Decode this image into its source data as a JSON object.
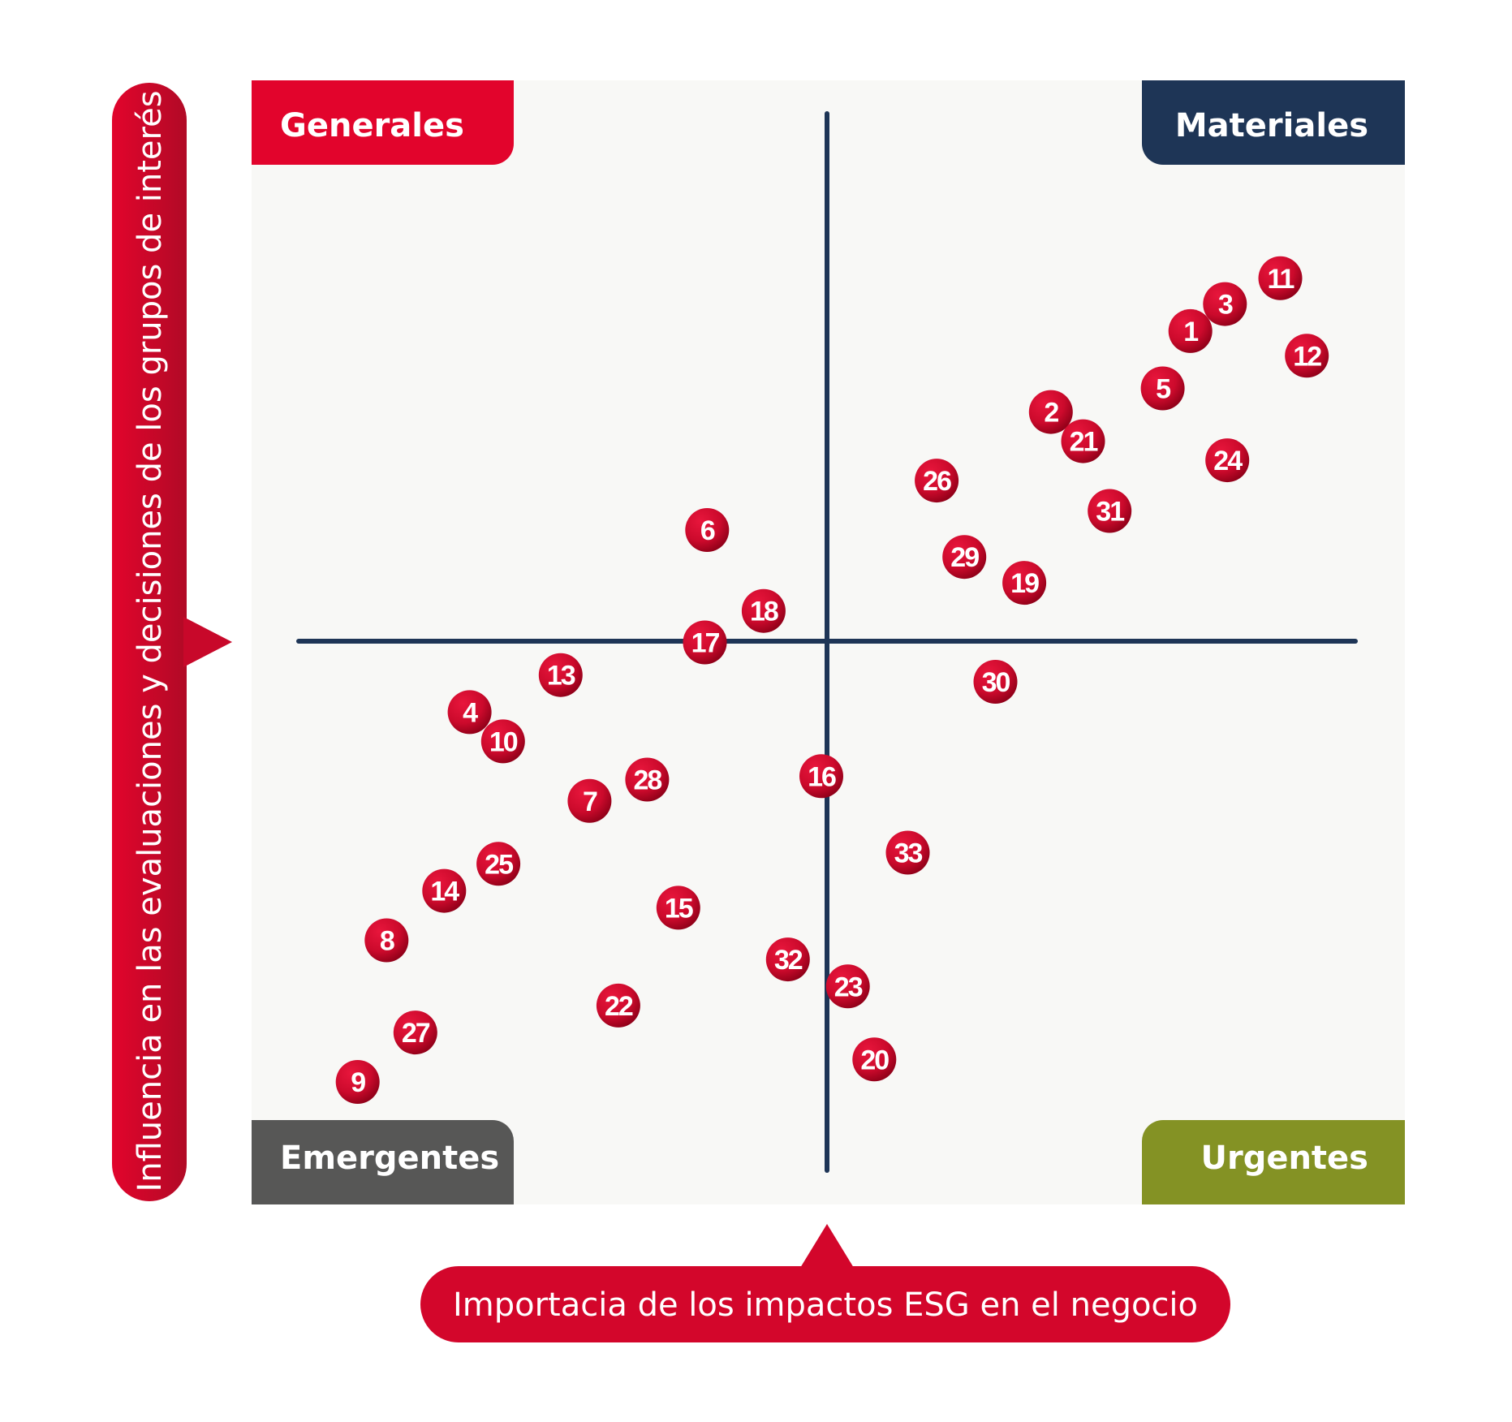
{
  "chart_data": {
    "type": "scatter",
    "xlabel": "Importacia de los impactos ESG en el negocio",
    "ylabel": "Influencia en las evaluaciones y decisiones de los grupos de interés",
    "xlim": [
      0,
      100
    ],
    "ylim": [
      0,
      100
    ],
    "grid": false,
    "quadrants": {
      "top_left": "Generales",
      "top_right": "Materiales",
      "bottom_left": "Emergentes",
      "bottom_right": "Urgentes"
    },
    "points": [
      {
        "label": "1",
        "x": 81.4,
        "y": 77.7
      },
      {
        "label": "2",
        "x": 69.3,
        "y": 70.5
      },
      {
        "label": "3",
        "x": 84.4,
        "y": 80.1
      },
      {
        "label": "4",
        "x": 18.9,
        "y": 43.8
      },
      {
        "label": "5",
        "x": 79.0,
        "y": 72.6
      },
      {
        "label": "6",
        "x": 39.5,
        "y": 60.0
      },
      {
        "label": "7",
        "x": 29.3,
        "y": 35.9
      },
      {
        "label": "8",
        "x": 11.7,
        "y": 23.5
      },
      {
        "label": "9",
        "x": 9.2,
        "y": 10.9
      },
      {
        "label": "10",
        "x": 21.8,
        "y": 41.2
      },
      {
        "label": "11",
        "x": 89.2,
        "y": 82.4
      },
      {
        "label": "12",
        "x": 91.5,
        "y": 75.5
      },
      {
        "label": "13",
        "x": 26.8,
        "y": 47.1
      },
      {
        "label": "14",
        "x": 16.7,
        "y": 27.9
      },
      {
        "label": "15",
        "x": 37.0,
        "y": 26.4
      },
      {
        "label": "16",
        "x": 49.4,
        "y": 38.1
      },
      {
        "label": "17",
        "x": 39.3,
        "y": 50.0
      },
      {
        "label": "18",
        "x": 44.4,
        "y": 52.8
      },
      {
        "label": "19",
        "x": 67.0,
        "y": 55.3
      },
      {
        "label": "20",
        "x": 54.0,
        "y": 12.9
      },
      {
        "label": "21",
        "x": 72.1,
        "y": 67.9
      },
      {
        "label": "22",
        "x": 31.8,
        "y": 17.7
      },
      {
        "label": "23",
        "x": 51.7,
        "y": 19.4
      },
      {
        "label": "24",
        "x": 84.6,
        "y": 66.2
      },
      {
        "label": "25",
        "x": 21.4,
        "y": 30.3
      },
      {
        "label": "26",
        "x": 59.4,
        "y": 64.4
      },
      {
        "label": "27",
        "x": 14.2,
        "y": 15.3
      },
      {
        "label": "28",
        "x": 34.3,
        "y": 37.8
      },
      {
        "label": "29",
        "x": 61.8,
        "y": 57.6
      },
      {
        "label": "30",
        "x": 64.5,
        "y": 46.5
      },
      {
        "label": "31",
        "x": 74.4,
        "y": 61.7
      },
      {
        "label": "32",
        "x": 46.5,
        "y": 21.8
      },
      {
        "label": "33",
        "x": 56.9,
        "y": 31.3
      }
    ]
  },
  "colors": {
    "panel_bg": "#f8f8f6",
    "axis_lines": "#1e3556",
    "bubble": "#cc0a2c",
    "bubble_dark": "#8e0018",
    "label_red": "#e2042c",
    "generales": "#e2042c",
    "materiales": "#1e3556",
    "emergentes": "#575756",
    "urgentes": "#849224"
  }
}
